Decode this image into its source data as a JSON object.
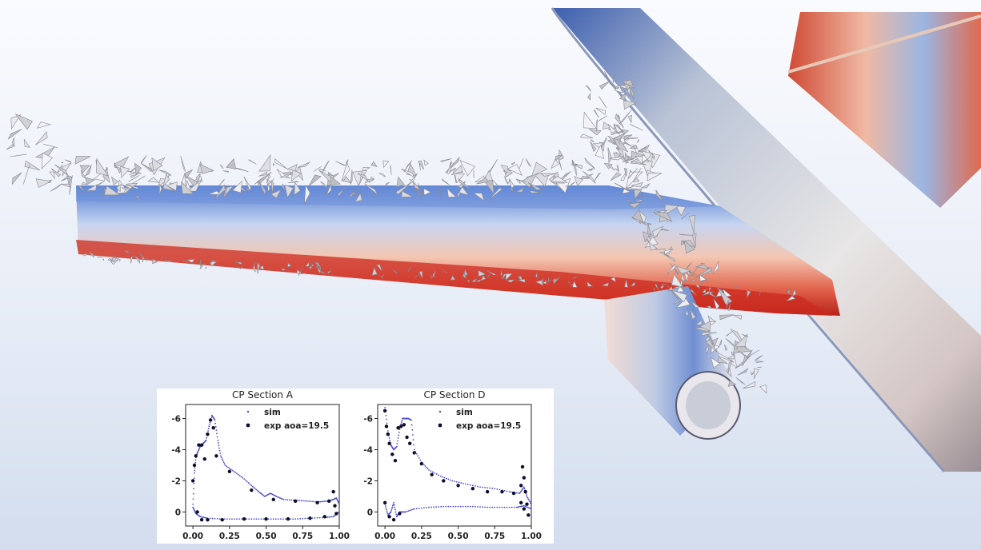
{
  "chart_data": [
    {
      "type": "scatter",
      "title": "CP Section A",
      "xlabel": "",
      "ylabel": "",
      "xlim": [
        -0.05,
        1.0
      ],
      "ylim": [
        0.9,
        -6.9
      ],
      "y_inverted": true,
      "xticks": [
        "0.00",
        "0.25",
        "0.50",
        "0.75",
        "1.00"
      ],
      "yticks": [
        "-6",
        "-4",
        "-2",
        "0"
      ],
      "legend": "top-right",
      "series": [
        {
          "name": "sim",
          "color": "#4b4bd0",
          "upper": [
            [
              0.0,
              -0.5
            ],
            [
              0.01,
              -2.5
            ],
            [
              0.02,
              -3.5
            ],
            [
              0.03,
              -3.8
            ],
            [
              0.05,
              -4.2
            ],
            [
              0.07,
              -4.4
            ],
            [
              0.09,
              -4.6
            ],
            [
              0.11,
              -5.5
            ],
            [
              0.13,
              -6.2
            ],
            [
              0.15,
              -5.9
            ],
            [
              0.17,
              -4.6
            ],
            [
              0.19,
              -3.6
            ],
            [
              0.22,
              -3.0
            ],
            [
              0.28,
              -2.6
            ],
            [
              0.34,
              -2.2
            ],
            [
              0.4,
              -1.7
            ],
            [
              0.45,
              -1.3
            ],
            [
              0.49,
              -1.0
            ],
            [
              0.53,
              -1.2
            ],
            [
              0.57,
              -1.0
            ],
            [
              0.62,
              -0.8
            ],
            [
              0.7,
              -0.75
            ],
            [
              0.78,
              -0.7
            ],
            [
              0.86,
              -0.65
            ],
            [
              0.92,
              -0.7
            ],
            [
              0.96,
              -0.8
            ],
            [
              0.98,
              -0.9
            ],
            [
              1.0,
              -0.5
            ]
          ],
          "lower": [
            [
              0.0,
              -0.3
            ],
            [
              0.02,
              0.1
            ],
            [
              0.05,
              0.3
            ],
            [
              0.1,
              0.4
            ],
            [
              0.2,
              0.45
            ],
            [
              0.3,
              0.45
            ],
            [
              0.4,
              0.45
            ],
            [
              0.5,
              0.45
            ],
            [
              0.6,
              0.45
            ],
            [
              0.7,
              0.45
            ],
            [
              0.8,
              0.4
            ],
            [
              0.9,
              0.35
            ],
            [
              0.96,
              0.3
            ],
            [
              1.0,
              0.0
            ]
          ]
        },
        {
          "name": "exp aoa=19.5",
          "color": "#0e0e2a",
          "points": [
            [
              0.0,
              -2.0
            ],
            [
              0.01,
              -3.0
            ],
            [
              0.02,
              -3.6
            ],
            [
              0.04,
              -4.3
            ],
            [
              0.06,
              -4.3
            ],
            [
              0.08,
              -3.4
            ],
            [
              0.1,
              -5.0
            ],
            [
              0.12,
              -5.9
            ],
            [
              0.14,
              -5.4
            ],
            [
              0.16,
              -3.6
            ],
            [
              0.25,
              -2.6
            ],
            [
              0.4,
              -1.4
            ],
            [
              0.55,
              -0.8
            ],
            [
              0.7,
              -0.7
            ],
            [
              0.85,
              -0.6
            ],
            [
              0.93,
              -0.7
            ],
            [
              0.96,
              -1.3
            ],
            [
              0.97,
              -0.4
            ],
            [
              0.98,
              0.1
            ],
            [
              0.03,
              0.0
            ],
            [
              0.06,
              0.5
            ],
            [
              0.1,
              0.5
            ],
            [
              0.2,
              0.5
            ],
            [
              0.35,
              0.45
            ],
            [
              0.5,
              0.45
            ],
            [
              0.65,
              0.45
            ],
            [
              0.8,
              0.4
            ],
            [
              0.9,
              0.3
            ]
          ]
        }
      ]
    },
    {
      "type": "scatter",
      "title": "CP Section D",
      "xlabel": "",
      "ylabel": "",
      "xlim": [
        -0.05,
        1.0
      ],
      "ylim": [
        0.9,
        -6.9
      ],
      "y_inverted": true,
      "xticks": [
        "0.00",
        "0.25",
        "0.50",
        "0.75",
        "1.00"
      ],
      "yticks": [
        "-6",
        "-4",
        "-2",
        "0"
      ],
      "legend": "top-right",
      "series": [
        {
          "name": "sim",
          "color": "#4b4bd0",
          "upper": [
            [
              0.0,
              -6.7
            ],
            [
              0.02,
              -5.2
            ],
            [
              0.04,
              -4.3
            ],
            [
              0.06,
              -4.0
            ],
            [
              0.08,
              -4.2
            ],
            [
              0.1,
              -5.3
            ],
            [
              0.12,
              -6.0
            ],
            [
              0.14,
              -6.0
            ],
            [
              0.16,
              -6.0
            ],
            [
              0.18,
              -5.9
            ],
            [
              0.2,
              -4.0
            ],
            [
              0.25,
              -3.2
            ],
            [
              0.3,
              -2.7
            ],
            [
              0.38,
              -2.3
            ],
            [
              0.46,
              -2.0
            ],
            [
              0.55,
              -1.8
            ],
            [
              0.65,
              -1.6
            ],
            [
              0.75,
              -1.5
            ],
            [
              0.85,
              -1.3
            ],
            [
              0.92,
              -1.2
            ],
            [
              0.95,
              -1.6
            ],
            [
              0.97,
              -1.0
            ],
            [
              1.0,
              -0.5
            ]
          ],
          "lower": [
            [
              0.0,
              -0.5
            ],
            [
              0.02,
              0.2
            ],
            [
              0.04,
              0.0
            ],
            [
              0.06,
              -0.6
            ],
            [
              0.08,
              0.3
            ],
            [
              0.1,
              0.0
            ],
            [
              0.14,
              0.0
            ],
            [
              0.2,
              -0.2
            ],
            [
              0.3,
              -0.3
            ],
            [
              0.4,
              -0.35
            ],
            [
              0.5,
              -0.35
            ],
            [
              0.6,
              -0.35
            ],
            [
              0.7,
              -0.3
            ],
            [
              0.8,
              -0.3
            ],
            [
              0.9,
              -0.3
            ],
            [
              0.95,
              -0.4
            ],
            [
              1.0,
              -0.2
            ]
          ]
        },
        {
          "name": "exp aoa=19.5",
          "color": "#0e0e2a",
          "points": [
            [
              0.0,
              -6.5
            ],
            [
              0.01,
              -5.5
            ],
            [
              0.02,
              -5.0
            ],
            [
              0.03,
              -4.4
            ],
            [
              0.05,
              -3.7
            ],
            [
              0.07,
              -3.3
            ],
            [
              0.09,
              -5.4
            ],
            [
              0.11,
              -5.5
            ],
            [
              0.13,
              -5.6
            ],
            [
              0.15,
              -4.8
            ],
            [
              0.17,
              -4.4
            ],
            [
              0.2,
              -3.8
            ],
            [
              0.25,
              -3.1
            ],
            [
              0.32,
              -2.4
            ],
            [
              0.4,
              -2.0
            ],
            [
              0.5,
              -1.7
            ],
            [
              0.6,
              -1.5
            ],
            [
              0.7,
              -1.3
            ],
            [
              0.8,
              -1.3
            ],
            [
              0.88,
              -1.2
            ],
            [
              0.93,
              -1.7
            ],
            [
              0.94,
              -2.9
            ],
            [
              0.95,
              -2.2
            ],
            [
              0.96,
              -1.3
            ],
            [
              0.97,
              -0.5
            ],
            [
              0.98,
              0.2
            ],
            [
              0.0,
              -0.6
            ],
            [
              0.03,
              0.3
            ],
            [
              0.06,
              0.5
            ],
            [
              0.1,
              0.1
            ],
            [
              0.93,
              -0.6
            ],
            [
              0.95,
              -0.2
            ]
          ]
        }
      ]
    }
  ]
}
